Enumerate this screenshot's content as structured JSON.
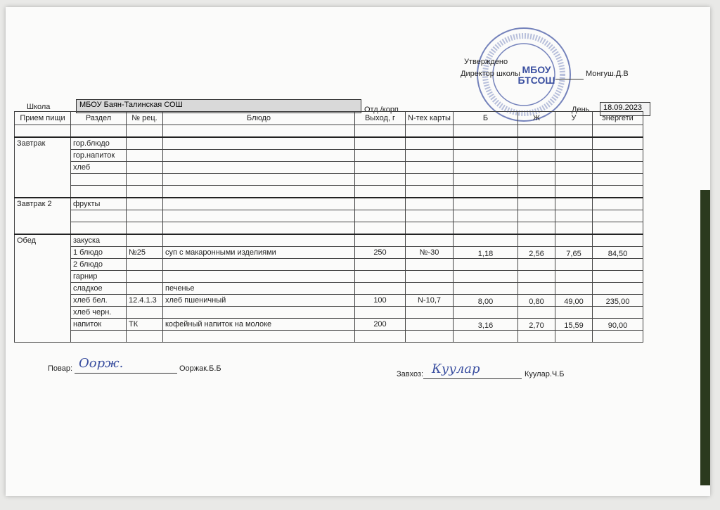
{
  "header": {
    "approved": "Утверждено",
    "director_label": "Директор школы",
    "director_name": "Монгуш.Д.В",
    "school_label": "Школа",
    "school_value": "МБОУ  Баян-Талинская СОШ",
    "dept_label": "Отд./корп",
    "day_label": "День",
    "date": "18.09.2023"
  },
  "stamp": {
    "text": "МБОУ БТСОШ"
  },
  "table": {
    "columns": [
      "Прием пищи",
      "Раздел",
      "№ рец.",
      "Блюдо",
      "Выход, г",
      "N-тех карты",
      "Б",
      "Ж",
      "У",
      "энергети"
    ],
    "rows": [
      [
        "",
        "",
        "",
        "",
        "",
        "",
        "",
        "",
        "",
        ""
      ],
      [
        "Завтрак",
        "гор.блюдо",
        "",
        "",
        "",
        "",
        "",
        "",
        "",
        ""
      ],
      [
        "",
        "гор.напиток",
        "",
        "",
        "",
        "",
        "",
        "",
        "",
        ""
      ],
      [
        "",
        "хлеб",
        "",
        "",
        "",
        "",
        "",
        "",
        "",
        ""
      ],
      [
        "",
        "",
        "",
        "",
        "",
        "",
        "",
        "",
        "",
        ""
      ],
      [
        "",
        "",
        "",
        "",
        "",
        "",
        "",
        "",
        "",
        ""
      ],
      [
        "Завтрак 2",
        "фрукты",
        "",
        "",
        "",
        "",
        "",
        "",
        "",
        ""
      ],
      [
        "",
        "",
        "",
        "",
        "",
        "",
        "",
        "",
        "",
        ""
      ],
      [
        "",
        "",
        "",
        "",
        "",
        "",
        "",
        "",
        "",
        ""
      ],
      [
        "Обед",
        "закуска",
        "",
        "",
        "",
        "",
        "",
        "",
        "",
        ""
      ],
      [
        "",
        "1 блюдо",
        "№25",
        "суп с макаронными изделиями",
        "250",
        "№-30",
        "1,18",
        "2,56",
        "7,65",
        "84,50"
      ],
      [
        "",
        "2 блюдо",
        "",
        "",
        "",
        "",
        "",
        "",
        "",
        ""
      ],
      [
        "",
        "гарнир",
        "",
        "",
        "",
        "",
        "",
        "",
        "",
        ""
      ],
      [
        "",
        "сладкое",
        "",
        "печенье",
        "",
        "",
        "",
        "",
        "",
        ""
      ],
      [
        "",
        "хлеб бел.",
        "12.4.1.3",
        "хлеб пшеничный",
        "100",
        "N-10,7",
        "8,00",
        "0,80",
        "49,00",
        "235,00"
      ],
      [
        "",
        "хлеб черн.",
        "",
        "",
        "",
        "",
        "",
        "",
        "",
        ""
      ],
      [
        "",
        "напиток",
        "ТК",
        "кофейный напиток  на молоке",
        "200",
        "",
        "3,16",
        "2,70",
        "15,59",
        "90,00"
      ],
      [
        "",
        "",
        "",
        "",
        "",
        "",
        "",
        "",
        "",
        ""
      ]
    ]
  },
  "footer": {
    "cook_label": "Повар:",
    "cook_signature": "Оорж.",
    "cook_name": "Ооржак.Б.Б",
    "supply_label": "Завхоз:",
    "supply_signature": "Куулар",
    "supply_name": "Куулар.Ч.Б"
  },
  "colors": {
    "stamp": "#3a4fa0",
    "cell_fill": "#d9d9d9"
  }
}
